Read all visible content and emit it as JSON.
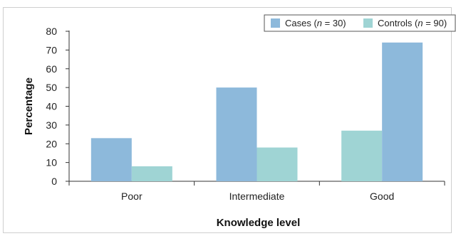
{
  "chart_data": {
    "type": "bar",
    "categories": [
      "Poor",
      "Intermediate",
      "Good"
    ],
    "series": [
      {
        "name_prefix": "Cases (",
        "name_n": "n",
        "name_suffix": " = 30)",
        "color": "#8db9db",
        "values": [
          23,
          50,
          74
        ]
      },
      {
        "name_prefix": "Controls (",
        "name_n": "n",
        "name_suffix": " = 90)",
        "color": "#9fd4d4",
        "values": [
          8,
          18,
          27
        ]
      }
    ],
    "bar_order": [
      [
        0,
        1
      ],
      [
        0,
        1
      ],
      [
        1,
        0
      ]
    ],
    "ylabel": "Percentage",
    "xlabel": "Knowledge level",
    "ylim": [
      0,
      80
    ],
    "yticks": [
      "0",
      "10",
      "20",
      "30",
      "40",
      "50",
      "60",
      "70",
      "80"
    ],
    "grid": false,
    "legend_position": "top-right"
  }
}
